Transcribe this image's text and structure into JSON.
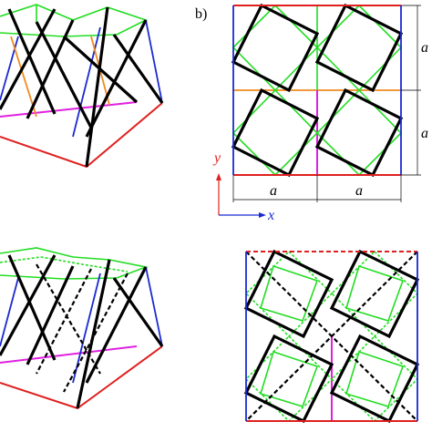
{
  "panel_label": "b)",
  "axes": {
    "x": "x",
    "y": "y"
  },
  "dimensions": {
    "horizontal": [
      "a",
      "a"
    ],
    "vertical": [
      "a",
      "a"
    ]
  }
}
